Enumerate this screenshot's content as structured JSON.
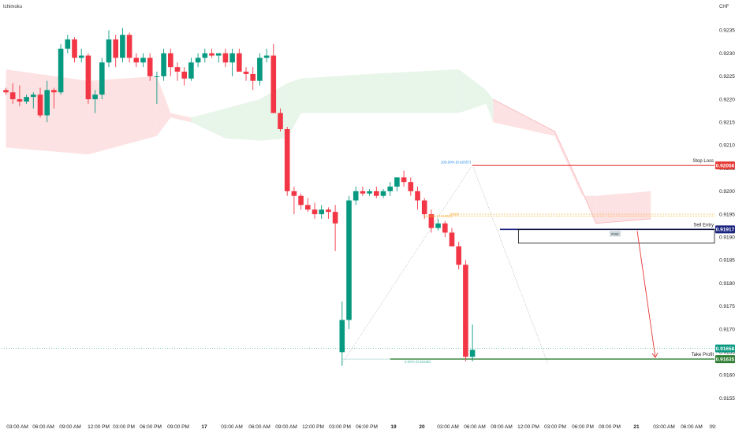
{
  "chart_data": {
    "type": "candlestick",
    "indicator_label": "Ichimoku",
    "currency_label": "CHF",
    "ylim": [
      0.91505,
      0.92385
    ],
    "y_ticks": [
      "0.92350",
      "0.92300",
      "0.92250",
      "0.92200",
      "0.92150",
      "0.92100",
      "0.92050",
      "0.92000",
      "0.91950",
      "0.91900",
      "0.91850",
      "0.91800",
      "0.91750",
      "0.91700",
      "0.91650",
      "0.91600",
      "0.91550"
    ],
    "x_ticks": [
      "03:00 AM",
      "06:00 AM",
      "09:00 AM",
      "12:00 PM",
      "03:00 PM",
      "06:00 PM",
      "09:00 PM",
      "17",
      "03:00 AM",
      "06:00 AM",
      "09:00 AM",
      "12:00 PM",
      "03:00 PM",
      "06:00 PM",
      "19",
      "20",
      "03:00 AM",
      "06:00 AM",
      "09:00 AM",
      "12:00 PM",
      "03:00 PM",
      "06:00 PM",
      "09:00 PM",
      "21",
      "03:00 AM",
      "06:00 AM",
      "09:"
    ],
    "x_tick_bold": [
      "17",
      "19",
      "20",
      "21"
    ],
    "candles": [
      [
        0.9222,
        0.92225,
        0.9221,
        0.92215
      ],
      [
        0.92215,
        0.92235,
        0.9219,
        0.922
      ],
      [
        0.922,
        0.9223,
        0.92185,
        0.92195
      ],
      [
        0.92195,
        0.9221,
        0.9219,
        0.92205
      ],
      [
        0.92205,
        0.92215,
        0.9218,
        0.9221
      ],
      [
        0.9221,
        0.92225,
        0.9216,
        0.92165
      ],
      [
        0.92165,
        0.9224,
        0.9215,
        0.9222
      ],
      [
        0.9222,
        0.92225,
        0.9218,
        0.92215
      ],
      [
        0.92215,
        0.9232,
        0.9221,
        0.9231
      ],
      [
        0.9231,
        0.9234,
        0.923,
        0.9233
      ],
      [
        0.9233,
        0.92335,
        0.9228,
        0.9229
      ],
      [
        0.9229,
        0.9231,
        0.9228,
        0.92295
      ],
      [
        0.92295,
        0.923,
        0.9219,
        0.922
      ],
      [
        0.922,
        0.9222,
        0.9217,
        0.9221
      ],
      [
        0.9221,
        0.9229,
        0.922,
        0.9228
      ],
      [
        0.9228,
        0.9235,
        0.9227,
        0.9233
      ],
      [
        0.9233,
        0.9234,
        0.9227,
        0.9229
      ],
      [
        0.9229,
        0.92355,
        0.9228,
        0.9234
      ],
      [
        0.9234,
        0.92345,
        0.9228,
        0.9229
      ],
      [
        0.9229,
        0.923,
        0.9227,
        0.9228
      ],
      [
        0.9228,
        0.923,
        0.9227,
        0.9229
      ],
      [
        0.9229,
        0.923,
        0.9224,
        0.9225
      ],
      [
        0.9225,
        0.9226,
        0.9219,
        0.9225
      ],
      [
        0.9225,
        0.9231,
        0.9224,
        0.923
      ],
      [
        0.923,
        0.9231,
        0.9225,
        0.9227
      ],
      [
        0.9227,
        0.9228,
        0.9224,
        0.9226
      ],
      [
        0.9226,
        0.9227,
        0.9223,
        0.92245
      ],
      [
        0.92245,
        0.9229,
        0.9224,
        0.9228
      ],
      [
        0.9228,
        0.923,
        0.9227,
        0.9229
      ],
      [
        0.9229,
        0.9231,
        0.9228,
        0.923
      ],
      [
        0.923,
        0.9231,
        0.9229,
        0.92295
      ],
      [
        0.92295,
        0.923,
        0.9228,
        0.923
      ],
      [
        0.923,
        0.9231,
        0.9227,
        0.9228
      ],
      [
        0.9228,
        0.9231,
        0.9225,
        0.923
      ],
      [
        0.923,
        0.9231,
        0.9226,
        0.9226
      ],
      [
        0.9226,
        0.9227,
        0.9224,
        0.92255
      ],
      [
        0.92255,
        0.9227,
        0.9222,
        0.9224
      ],
      [
        0.9224,
        0.923,
        0.9223,
        0.9229
      ],
      [
        0.9229,
        0.9231,
        0.9228,
        0.92295
      ],
      [
        0.92295,
        0.9232,
        0.9217,
        0.9217
      ],
      [
        0.9217,
        0.9218,
        0.9213,
        0.92135
      ],
      [
        0.92135,
        0.9214,
        0.9199,
        0.92
      ],
      [
        0.92,
        0.9201,
        0.9195,
        0.9199
      ],
      [
        0.9199,
        0.91995,
        0.9196,
        0.9197
      ],
      [
        0.9197,
        0.91985,
        0.91955,
        0.9196
      ],
      [
        0.9196,
        0.91975,
        0.9194,
        0.9195
      ],
      [
        0.9195,
        0.9197,
        0.9194,
        0.9196
      ],
      [
        0.9196,
        0.91965,
        0.9194,
        0.91955
      ],
      [
        0.91955,
        0.9197,
        0.9187,
        0.9193
      ],
      [
        0.9165,
        0.9176,
        0.9162,
        0.9172
      ],
      [
        0.9172,
        0.9199,
        0.917,
        0.9198
      ],
      [
        0.9198,
        0.9201,
        0.9197,
        0.92
      ],
      [
        0.92,
        0.9201,
        0.9199,
        0.91995
      ],
      [
        0.91995,
        0.92005,
        0.9199,
        0.92
      ],
      [
        0.92,
        0.9201,
        0.91985,
        0.9199
      ],
      [
        0.9199,
        0.92005,
        0.91985,
        0.92
      ],
      [
        0.92,
        0.9202,
        0.9199,
        0.9201
      ],
      [
        0.9201,
        0.9203,
        0.92,
        0.9203
      ],
      [
        0.9203,
        0.92045,
        0.9201,
        0.9202
      ],
      [
        0.9202,
        0.9203,
        0.9199,
        0.92
      ],
      [
        0.92,
        0.9201,
        0.9196,
        0.9198
      ],
      [
        0.9198,
        0.91985,
        0.9194,
        0.9195
      ],
      [
        0.9195,
        0.9196,
        0.9191,
        0.9192
      ],
      [
        0.9192,
        0.9194,
        0.91915,
        0.9193
      ],
      [
        0.9193,
        0.91935,
        0.919,
        0.9191
      ],
      [
        0.9191,
        0.9192,
        0.9188,
        0.9188
      ],
      [
        0.9188,
        0.9189,
        0.9183,
        0.9184
      ],
      [
        0.9184,
        0.9185,
        0.9163,
        0.9164
      ],
      [
        0.9164,
        0.9171,
        0.9163,
        0.91655
      ]
    ],
    "cloud": [
      [
        0,
        0.92265,
        0.92095,
        "bear"
      ],
      [
        12,
        0.9224,
        0.9208,
        "bear"
      ],
      [
        22,
        0.9225,
        0.9212,
        "bear"
      ],
      [
        24,
        0.9217,
        0.9216,
        "bear"
      ],
      [
        27,
        0.9216,
        0.9215,
        "bull"
      ],
      [
        32,
        0.9218,
        0.92115,
        "bull"
      ],
      [
        37,
        0.922,
        0.9211,
        "bull"
      ],
      [
        41,
        0.92235,
        0.92115,
        "bull"
      ],
      [
        43,
        0.92245,
        0.9217,
        "bull"
      ],
      [
        53,
        0.92255,
        0.9217,
        "bull"
      ],
      [
        66,
        0.92265,
        0.9217,
        "bull"
      ],
      [
        70,
        0.9222,
        0.9219,
        "bull"
      ],
      [
        71,
        0.922,
        0.9215,
        "bear"
      ],
      [
        80,
        0.9213,
        0.9212,
        "bear"
      ],
      [
        84,
        0.92,
        0.9199,
        "bear"
      ],
      [
        86,
        0.9193,
        0.9199,
        "bear"
      ],
      [
        94,
        0.9194,
        0.92,
        "bear"
      ]
    ],
    "cloud_future_index": 71,
    "stop_loss": {
      "label": "Stop Loss",
      "price": 0.92056,
      "price_label": "0.92056",
      "color": "#e53935"
    },
    "sell_entry": {
      "label": "Sell Entry",
      "price": 0.91917,
      "price_label": "0.91917",
      "color": "#1a237e"
    },
    "take_profit": {
      "label": "Take Profit",
      "price": 0.91635,
      "price_label": "0.91635",
      "color": "#2e7d32"
    },
    "current_price": {
      "price": 0.91658,
      "price_label": "0.91658",
      "color": "#089981"
    },
    "fvg": {
      "label": "FVG",
      "top": 0.91917,
      "bottom": 0.91887
    },
    "fib_labels": {
      "top": "100.00% (0.92057)",
      "mid": "61.80% (0.91950)",
      "mid2": "0.618",
      "bottom": "0.00% (0.91635)"
    },
    "fib_prices": {
      "top": 0.92057,
      "mid": 0.9195,
      "mid2": 0.91946,
      "bottom": 0.91635
    },
    "colors": {
      "bull": "#089981",
      "bear": "#f23645",
      "cloud_bull": "#e8f5e9",
      "cloud_bear": "#fde2e3"
    }
  }
}
